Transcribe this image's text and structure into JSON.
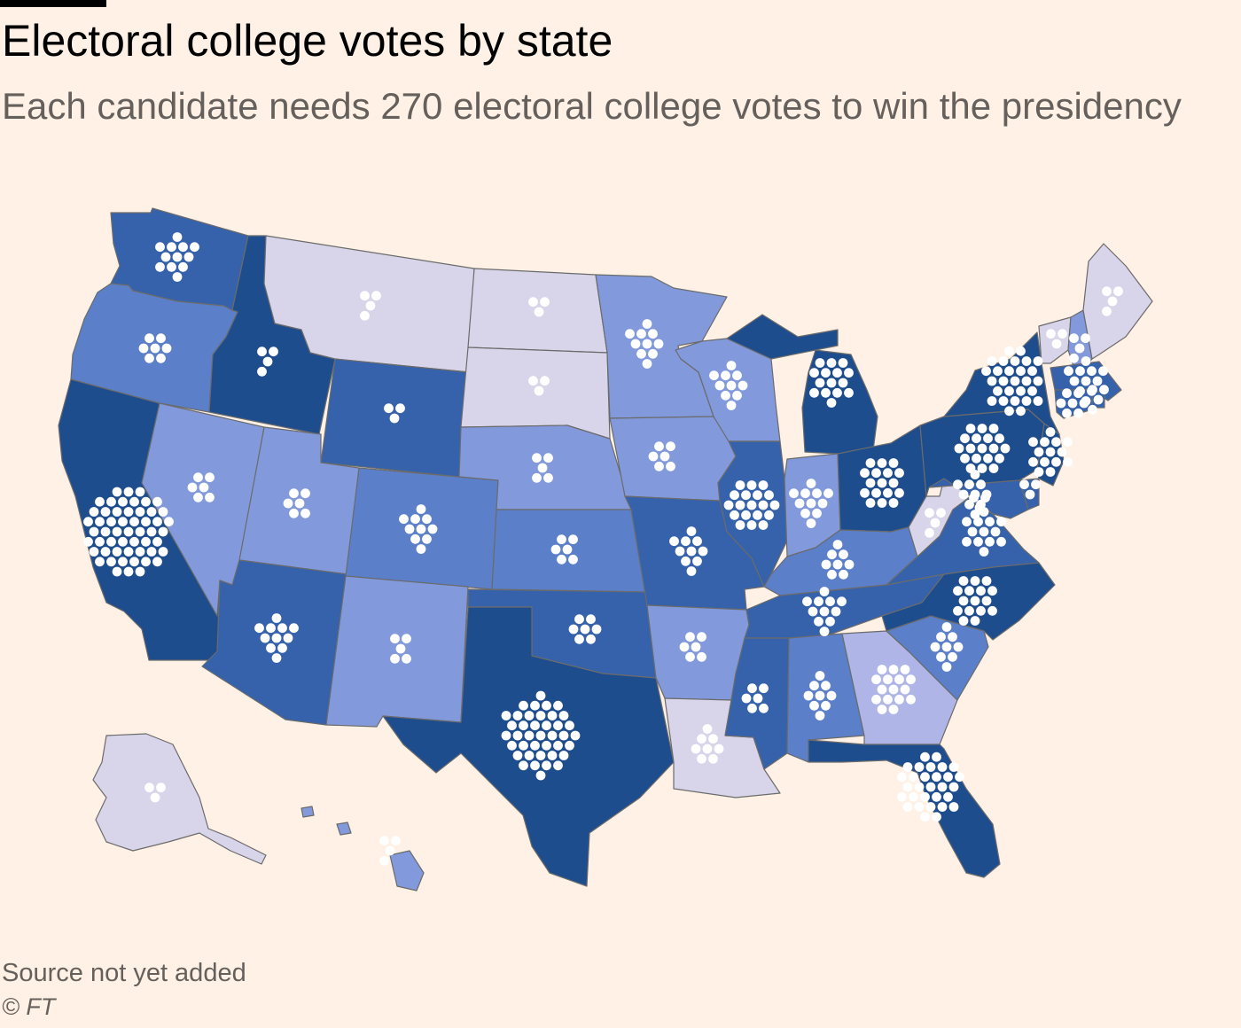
{
  "title": "Electoral college votes by state",
  "subtitle": "Each candidate needs 270 electoral college votes to win the presidency",
  "source": "Source not yet added",
  "credit": "© FT",
  "colors": {
    "background": "#FFF1E5",
    "dot": "#FFFFFF",
    "border": "#6B6B6B",
    "shades": [
      "#D8D4EA",
      "#AFB6E7",
      "#8299DC",
      "#5B7FC8",
      "#3562AA",
      "#1E4D8E"
    ]
  },
  "states": [
    {
      "abbr": "WA",
      "votes": 12,
      "shade": 4
    },
    {
      "abbr": "OR",
      "votes": 7,
      "shade": 3
    },
    {
      "abbr": "CA",
      "votes": 54,
      "shade": 5
    },
    {
      "abbr": "NV",
      "votes": 6,
      "shade": 2
    },
    {
      "abbr": "ID",
      "votes": 4,
      "shade": 5
    },
    {
      "abbr": "MT",
      "votes": 4,
      "shade": 0
    },
    {
      "abbr": "WY",
      "votes": 3,
      "shade": 4
    },
    {
      "abbr": "UT",
      "votes": 6,
      "shade": 2
    },
    {
      "abbr": "AZ",
      "votes": 11,
      "shade": 4
    },
    {
      "abbr": "CO",
      "votes": 10,
      "shade": 3
    },
    {
      "abbr": "NM",
      "votes": 5,
      "shade": 2
    },
    {
      "abbr": "ND",
      "votes": 3,
      "shade": 0
    },
    {
      "abbr": "SD",
      "votes": 3,
      "shade": 0
    },
    {
      "abbr": "NE",
      "votes": 5,
      "shade": 2
    },
    {
      "abbr": "KS",
      "votes": 6,
      "shade": 3
    },
    {
      "abbr": "OK",
      "votes": 7,
      "shade": 4
    },
    {
      "abbr": "TX",
      "votes": 40,
      "shade": 5
    },
    {
      "abbr": "MN",
      "votes": 10,
      "shade": 2
    },
    {
      "abbr": "IA",
      "votes": 6,
      "shade": 2
    },
    {
      "abbr": "MO",
      "votes": 10,
      "shade": 4
    },
    {
      "abbr": "AR",
      "votes": 6,
      "shade": 2
    },
    {
      "abbr": "LA",
      "votes": 8,
      "shade": 0
    },
    {
      "abbr": "WI",
      "votes": 10,
      "shade": 2
    },
    {
      "abbr": "IL",
      "votes": 19,
      "shade": 4
    },
    {
      "abbr": "MI",
      "votes": 15,
      "shade": 5
    },
    {
      "abbr": "IN",
      "votes": 11,
      "shade": 2
    },
    {
      "abbr": "OH",
      "votes": 17,
      "shade": 5
    },
    {
      "abbr": "KY",
      "votes": 8,
      "shade": 3
    },
    {
      "abbr": "TN",
      "votes": 11,
      "shade": 4
    },
    {
      "abbr": "MS",
      "votes": 6,
      "shade": 4
    },
    {
      "abbr": "AL",
      "votes": 9,
      "shade": 3
    },
    {
      "abbr": "GA",
      "votes": 16,
      "shade": 1
    },
    {
      "abbr": "FL",
      "votes": 30,
      "shade": 5
    },
    {
      "abbr": "SC",
      "votes": 9,
      "shade": 3
    },
    {
      "abbr": "NC",
      "votes": 16,
      "shade": 5
    },
    {
      "abbr": "VA",
      "votes": 13,
      "shade": 4
    },
    {
      "abbr": "WV",
      "votes": 4,
      "shade": 0
    },
    {
      "abbr": "PA",
      "votes": 19,
      "shade": 5
    },
    {
      "abbr": "NY",
      "votes": 28,
      "shade": 5
    },
    {
      "abbr": "VT",
      "votes": 3,
      "shade": 0
    },
    {
      "abbr": "NH",
      "votes": 4,
      "shade": 2
    },
    {
      "abbr": "ME",
      "votes": 4,
      "shade": 0
    },
    {
      "abbr": "MA",
      "votes": 11,
      "shade": 4
    },
    {
      "abbr": "RI",
      "votes": 4,
      "shade": 4
    },
    {
      "abbr": "CT",
      "votes": 7,
      "shade": 4
    },
    {
      "abbr": "NJ",
      "votes": 14,
      "shade": 5
    },
    {
      "abbr": "DE",
      "votes": 3,
      "shade": 4
    },
    {
      "abbr": "MD",
      "votes": 10,
      "shade": 4
    },
    {
      "abbr": "DC",
      "votes": 3,
      "shade": 5
    },
    {
      "abbr": "AK",
      "votes": 3,
      "shade": 0
    },
    {
      "abbr": "HI",
      "votes": 4,
      "shade": 2
    }
  ]
}
